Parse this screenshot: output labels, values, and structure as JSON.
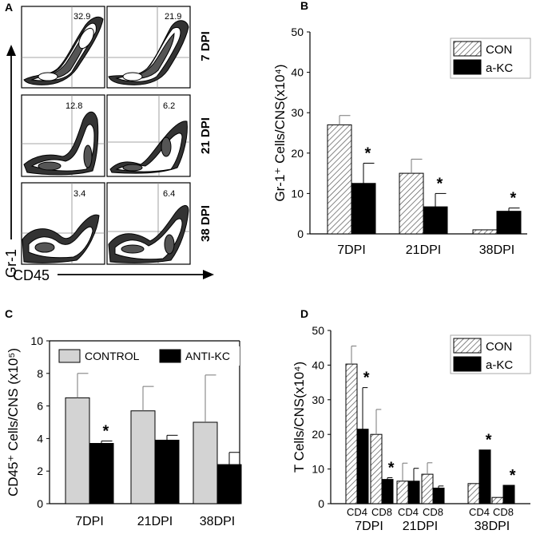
{
  "panel_a": {
    "letter": "A",
    "y_axis_label": "Gr-1",
    "x_axis_label": "CD45",
    "rows": [
      {
        "label": "7 DPI",
        "values": [
          "32.9",
          "21.9"
        ]
      },
      {
        "label": "21 DPI",
        "values": [
          "12.8",
          "6.2"
        ]
      },
      {
        "label": "38 DPI",
        "values": [
          "3.4",
          "6.4"
        ]
      }
    ]
  },
  "chart_data": [
    {
      "id": "B",
      "type": "bar",
      "letter": "B",
      "ylabel": "Gr-1⁺ Cells/CNS(x10⁴)",
      "xlabel": "",
      "categories": [
        "7DPI",
        "21DPI",
        "38DPI"
      ],
      "ylim": [
        0,
        50
      ],
      "yticks": [
        "0",
        "10",
        "20",
        "30",
        "40",
        "50"
      ],
      "series": [
        {
          "name": "CON",
          "style": "hatched",
          "values": [
            27,
            15,
            1
          ],
          "errors": [
            2.3,
            3.5,
            0
          ]
        },
        {
          "name": "a-KC",
          "style": "black",
          "values": [
            12.5,
            6.7,
            5.6
          ],
          "errors": [
            5,
            3.3,
            0.8
          ]
        }
      ],
      "significance": [
        "*",
        "*",
        "*"
      ]
    },
    {
      "id": "C",
      "type": "bar",
      "letter": "C",
      "ylabel": "CD45⁺ Cells/CNS (x10⁵)",
      "xlabel": "",
      "categories": [
        "7DPI",
        "21DPI",
        "38DPI"
      ],
      "ylim": [
        0,
        10
      ],
      "yticks": [
        "0",
        "2",
        "4",
        "6",
        "8",
        "10"
      ],
      "series": [
        {
          "name": "CONTROL",
          "style": "gray",
          "values": [
            6.5,
            5.7,
            5.0
          ],
          "errors": [
            1.5,
            1.5,
            2.9
          ]
        },
        {
          "name": "ANTI-KC",
          "style": "black",
          "values": [
            3.7,
            3.9,
            2.4
          ],
          "errors": [
            0.15,
            0.3,
            0.75
          ]
        }
      ],
      "significance": [
        "*",
        "",
        ""
      ]
    },
    {
      "id": "D",
      "type": "bar",
      "letter": "D",
      "ylabel": "T Cells/CNS(x10⁴)",
      "xlabel": "",
      "categories": [
        "CD4",
        "CD8",
        "CD4",
        "CD8",
        "CD4",
        "CD8"
      ],
      "groups": [
        "7DPI",
        "21DPI",
        "38DPI"
      ],
      "ylim": [
        0,
        50
      ],
      "yticks": [
        "0",
        "10",
        "20",
        "30",
        "40",
        "50"
      ],
      "series": [
        {
          "name": "CON",
          "style": "hatched",
          "values": [
            40.3,
            20,
            6.5,
            8.5,
            5.8,
            1.8
          ],
          "errors": [
            5.2,
            7.2,
            5.2,
            3.3,
            0,
            0
          ]
        },
        {
          "name": "a-KC",
          "style": "black",
          "values": [
            21.5,
            7,
            6.5,
            4.5,
            15.5,
            5.3
          ],
          "errors": [
            12,
            0.5,
            3.7,
            0.6,
            0,
            0
          ]
        }
      ],
      "significance": [
        "*",
        "*",
        "",
        "",
        "*",
        "*"
      ]
    }
  ],
  "colors": {
    "black": "#000000",
    "gray": "#d3d3d3",
    "hatch": "#555555",
    "white": "#ffffff"
  }
}
